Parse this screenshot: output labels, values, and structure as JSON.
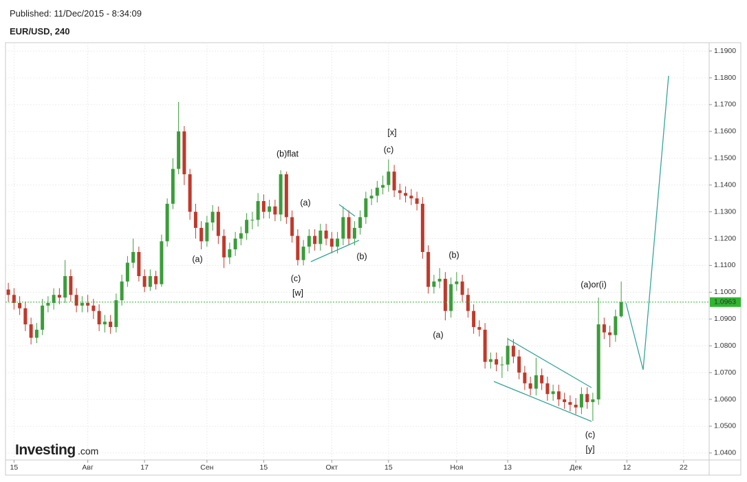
{
  "header": {
    "published": "Published: 11/Dec/2015 - 8:34:09",
    "symbol": "EUR/USD, 240"
  },
  "logo": {
    "brand": "Investing",
    "suffix": ".com"
  },
  "chart_data": {
    "type": "candlestick",
    "categories": [
      null,
      "15",
      null,
      null,
      null,
      null,
      null,
      null,
      null,
      null,
      null,
      null,
      null,
      null,
      "Авг",
      null,
      null,
      null,
      null,
      null,
      null,
      null,
      null,
      null,
      "17",
      null,
      null,
      null,
      null,
      null,
      null,
      null,
      null,
      null,
      null,
      "Сен",
      null,
      null,
      null,
      null,
      null,
      null,
      null,
      null,
      null,
      "15",
      null,
      null,
      null,
      null,
      null,
      null,
      null,
      null,
      null,
      null,
      null,
      "Окт",
      null,
      null,
      null,
      null,
      null,
      null,
      null,
      null,
      null,
      "15",
      null,
      null,
      null,
      null,
      null,
      null,
      null,
      null,
      null,
      null,
      null,
      "Ноя",
      null,
      null,
      null,
      null,
      null,
      null,
      null,
      null,
      "13",
      null,
      null,
      null,
      null,
      null,
      null,
      null,
      null,
      null,
      null,
      null,
      "Дек",
      null,
      null,
      null,
      null,
      null,
      null,
      null,
      null,
      "12",
      null,
      null,
      null,
      null,
      null,
      null,
      null,
      null,
      null,
      "22",
      null,
      null,
      null,
      null
    ],
    "open": [
      1.101,
      1.099,
      1.096,
      1.094,
      1.088,
      1.083,
      1.086,
      1.095,
      1.096,
      1.099,
      1.098,
      1.106,
      1.099,
      1.095,
      1.096,
      1.095,
      1.093,
      1.088,
      1.089,
      1.087,
      1.097,
      1.104,
      1.111,
      1.115,
      1.106,
      1.102,
      1.106,
      1.103,
      1.119,
      1.133,
      1.146,
      1.16,
      1.144,
      1.13,
      1.124,
      1.119,
      1.126,
      1.13,
      1.121,
      1.113,
      1.116,
      1.12,
      1.122,
      1.127,
      1.127,
      1.134,
      1.13,
      1.132,
      1.129,
      1.144,
      1.128,
      1.121,
      1.112,
      1.117,
      1.121,
      1.118,
      1.123,
      1.12,
      1.117,
      1.12,
      1.128,
      1.12,
      1.124,
      1.128,
      1.135,
      1.136,
      1.139,
      1.14,
      1.145,
      1.138,
      1.137,
      1.136,
      1.135,
      1.133,
      1.115,
      1.102,
      1.104,
      1.105,
      1.093,
      1.103,
      1.104,
      1.099,
      1.093,
      1.087,
      1.086,
      1.074,
      1.075,
      1.073,
      1.073,
      1.08,
      1.076,
      1.07,
      1.066,
      1.064,
      1.069,
      1.066,
      1.062,
      1.063,
      1.06,
      1.059,
      1.058,
      1.057,
      1.062,
      1.059,
      1.06,
      1.088,
      1.085,
      1.084,
      1.091,
      null,
      null,
      null,
      null,
      null,
      null,
      null,
      null,
      null,
      null,
      null,
      null,
      null,
      null,
      null
    ],
    "high": [
      1.1035,
      1.1015,
      1.0985,
      1.0965,
      1.0905,
      1.0885,
      1.0975,
      1.0985,
      1.1015,
      1.1015,
      1.112,
      1.1085,
      1.1015,
      1.0985,
      1.099,
      1.0975,
      1.0955,
      1.0915,
      1.0915,
      1.0995,
      1.1065,
      1.1135,
      1.12,
      1.117,
      1.1085,
      1.1085,
      1.108,
      1.1215,
      1.135,
      1.15,
      1.171,
      1.162,
      1.146,
      1.133,
      1.1265,
      1.1285,
      1.1325,
      1.132,
      1.1235,
      1.1185,
      1.1225,
      1.1245,
      1.1295,
      1.13,
      1.137,
      1.1365,
      1.1345,
      1.1345,
      1.1455,
      1.145,
      1.1305,
      1.1235,
      1.1195,
      1.1235,
      1.1235,
      1.1255,
      1.1255,
      1.1225,
      1.1225,
      1.132,
      1.1305,
      1.1265,
      1.1305,
      1.1375,
      1.1385,
      1.1415,
      1.1435,
      1.1495,
      1.1475,
      1.1405,
      1.1395,
      1.1385,
      1.1375,
      1.1355,
      1.1175,
      1.1065,
      1.109,
      1.1075,
      1.1055,
      1.1075,
      1.1065,
      1.1015,
      1.0955,
      1.0895,
      1.0885,
      1.0775,
      1.0775,
      1.076,
      1.083,
      1.0825,
      1.0785,
      1.0725,
      1.0685,
      1.0755,
      1.0715,
      1.0685,
      1.0655,
      1.0655,
      1.0625,
      1.0615,
      1.0605,
      1.0645,
      1.0645,
      1.0625,
      1.098,
      1.0905,
      1.0875,
      1.0935,
      1.104,
      null,
      null,
      null,
      null,
      null,
      null,
      null,
      null,
      null,
      null,
      null,
      null,
      null,
      null,
      null
    ],
    "low": [
      1.0965,
      1.0935,
      1.0915,
      1.0855,
      1.0805,
      1.081,
      1.084,
      1.0925,
      1.0935,
      1.0955,
      1.096,
      1.0965,
      1.0925,
      1.0925,
      1.0925,
      1.09,
      1.0855,
      1.085,
      1.0845,
      1.085,
      1.095,
      1.102,
      1.109,
      1.104,
      1.1,
      1.1005,
      1.101,
      1.102,
      1.117,
      1.131,
      1.144,
      1.14,
      1.127,
      1.12,
      1.116,
      1.117,
      1.123,
      1.118,
      1.109,
      1.1105,
      1.1135,
      1.1175,
      1.1195,
      1.1235,
      1.1245,
      1.1275,
      1.1275,
      1.1265,
      1.1265,
      1.1255,
      1.1185,
      1.11,
      1.11,
      1.1145,
      1.1155,
      1.1155,
      1.1175,
      1.1145,
      1.1145,
      1.1175,
      1.1175,
      1.1175,
      1.1215,
      1.1255,
      1.1325,
      1.1335,
      1.1365,
      1.1375,
      1.1355,
      1.1345,
      1.1335,
      1.1325,
      1.1305,
      1.1125,
      1.0995,
      1.0995,
      1.1015,
      1.0895,
      1.0905,
      1.1005,
      1.0965,
      1.0905,
      1.0845,
      1.0835,
      1.0715,
      1.0715,
      1.0705,
      1.068,
      1.0705,
      1.0735,
      1.0675,
      1.0635,
      1.0615,
      1.0615,
      1.0635,
      1.0595,
      1.0595,
      1.0575,
      1.0565,
      1.0555,
      1.0545,
      1.0545,
      1.0565,
      1.052,
      1.058,
      1.0825,
      1.0795,
      1.0815,
      1.0905,
      null,
      null,
      null,
      null,
      null,
      null,
      null,
      null,
      null,
      null,
      null,
      null,
      null,
      null,
      null
    ],
    "close": [
      1.099,
      1.096,
      1.094,
      1.088,
      1.083,
      1.086,
      1.095,
      1.096,
      1.099,
      1.098,
      1.106,
      1.099,
      1.095,
      1.096,
      1.095,
      1.093,
      1.088,
      1.089,
      1.087,
      1.097,
      1.104,
      1.111,
      1.115,
      1.106,
      1.102,
      1.106,
      1.103,
      1.119,
      1.133,
      1.146,
      1.16,
      1.144,
      1.13,
      1.124,
      1.119,
      1.126,
      1.13,
      1.121,
      1.113,
      1.116,
      1.12,
      1.122,
      1.127,
      1.127,
      1.134,
      1.13,
      1.132,
      1.129,
      1.144,
      1.128,
      1.121,
      1.112,
      1.117,
      1.121,
      1.118,
      1.123,
      1.12,
      1.117,
      1.12,
      1.128,
      1.12,
      1.124,
      1.128,
      1.135,
      1.136,
      1.139,
      1.14,
      1.145,
      1.138,
      1.137,
      1.136,
      1.135,
      1.133,
      1.115,
      1.102,
      1.104,
      1.105,
      1.093,
      1.103,
      1.104,
      1.099,
      1.093,
      1.087,
      1.086,
      1.074,
      1.075,
      1.073,
      1.073,
      1.08,
      1.076,
      1.07,
      1.066,
      1.064,
      1.069,
      1.066,
      1.062,
      1.063,
      1.06,
      1.059,
      1.058,
      1.057,
      1.062,
      1.059,
      1.06,
      1.088,
      1.085,
      1.084,
      1.091,
      1.0963,
      null,
      null,
      null,
      null,
      null,
      null,
      null,
      null,
      null,
      null,
      null,
      null,
      null,
      null,
      null
    ],
    "up_color": "#3a9d3a",
    "down_color": "#c0392b",
    "last_price": 1.0963,
    "last_price_color": "#2fb52f",
    "ylim": [
      1.0374,
      1.1931
    ],
    "yticks": [
      {
        "value": 1.04,
        "label": "1.0400"
      },
      {
        "value": 1.05,
        "label": "1.0500"
      },
      {
        "value": 1.06,
        "label": "1.0600"
      },
      {
        "value": 1.07,
        "label": "1.0700"
      },
      {
        "value": 1.08,
        "label": "1.0800"
      },
      {
        "value": 1.09,
        "label": "1.0900"
      },
      {
        "value": 1.1,
        "label": "1.1000"
      },
      {
        "value": 1.11,
        "label": "1.1100"
      },
      {
        "value": 1.12,
        "label": "1.1200"
      },
      {
        "value": 1.13,
        "label": "1.1300"
      },
      {
        "value": 1.14,
        "label": "1.1400"
      },
      {
        "value": 1.15,
        "label": "1.1500"
      },
      {
        "value": 1.16,
        "label": "1.1600"
      },
      {
        "value": 1.17,
        "label": "1.1700"
      },
      {
        "value": 1.18,
        "label": "1.1800"
      },
      {
        "value": 1.19,
        "label": "1.1900"
      }
    ],
    "grid": true,
    "annotations": [
      "[x]",
      "(c)",
      "(b)flat",
      "(a)",
      "(a)",
      "(b)",
      "(c)",
      "[w]",
      "(b)",
      "(a)",
      "(a)or(i)",
      "(c)",
      "[y]"
    ]
  }
}
